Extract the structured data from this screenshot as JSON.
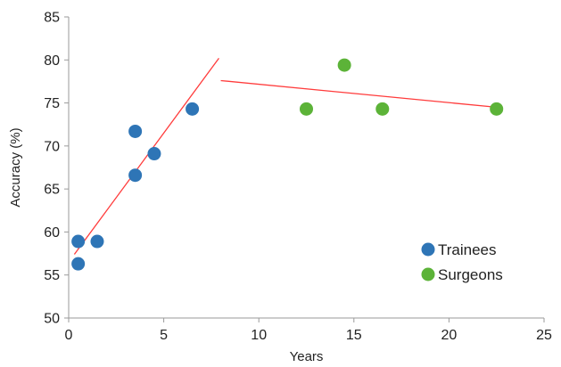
{
  "chart_data": {
    "type": "scatter",
    "title": "",
    "xlabel": "Years",
    "ylabel": "Accuracy (%)",
    "xlim": [
      0,
      25
    ],
    "ylim": [
      50,
      85
    ],
    "xticks": [
      0,
      5,
      10,
      15,
      20,
      25
    ],
    "yticks": [
      50,
      55,
      60,
      65,
      70,
      75,
      80,
      85
    ],
    "grid": false,
    "legend_position": "bottom-right",
    "series": [
      {
        "name": "Trainees",
        "color": "#2e75b6",
        "points": [
          {
            "x": 0.5,
            "y": 58.9
          },
          {
            "x": 0.5,
            "y": 56.3
          },
          {
            "x": 1.5,
            "y": 58.9
          },
          {
            "x": 3.5,
            "y": 71.7
          },
          {
            "x": 3.5,
            "y": 66.6
          },
          {
            "x": 4.5,
            "y": 69.1
          },
          {
            "x": 6.5,
            "y": 74.3
          }
        ],
        "trendline": {
          "color": "#ff3b3b",
          "from": {
            "x": 0.3,
            "y": 57.4
          },
          "to": {
            "x": 7.9,
            "y": 80.2
          }
        }
      },
      {
        "name": "Surgeons",
        "color": "#5cb338",
        "points": [
          {
            "x": 12.5,
            "y": 74.3
          },
          {
            "x": 14.5,
            "y": 79.4
          },
          {
            "x": 16.5,
            "y": 74.3
          },
          {
            "x": 22.5,
            "y": 74.3
          }
        ],
        "trendline": {
          "color": "#ff3b3b",
          "from": {
            "x": 8.0,
            "y": 77.6
          },
          "to": {
            "x": 22.5,
            "y": 74.5
          }
        }
      }
    ]
  }
}
